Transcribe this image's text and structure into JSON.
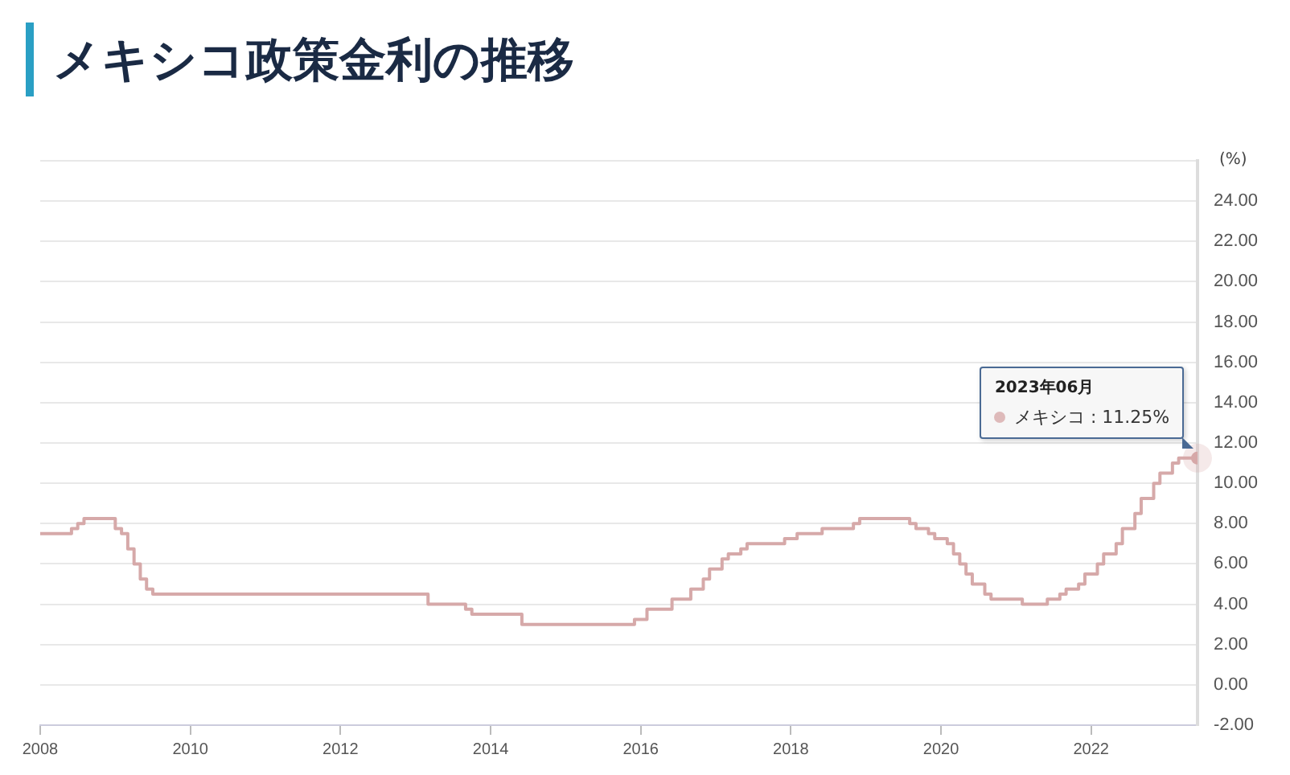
{
  "chart_data": {
    "type": "step",
    "title": "メキシコ政策金利の推移",
    "ylabel": "(%)",
    "x": [
      "2008-01",
      "2008-06",
      "2008-07",
      "2008-08",
      "2009-01",
      "2009-02",
      "2009-03",
      "2009-04",
      "2009-05",
      "2009-06",
      "2009-07",
      "2013-03",
      "2013-09",
      "2013-10",
      "2014-06",
      "2015-12",
      "2016-02",
      "2016-06",
      "2016-09",
      "2016-11",
      "2016-12",
      "2017-02",
      "2017-03",
      "2017-05",
      "2017-06",
      "2017-12",
      "2018-02",
      "2018-06",
      "2018-11",
      "2018-12",
      "2019-08",
      "2019-09",
      "2019-11",
      "2019-12",
      "2020-02",
      "2020-03",
      "2020-04",
      "2020-05",
      "2020-06",
      "2020-08",
      "2020-09",
      "2021-02",
      "2021-06",
      "2021-08",
      "2021-09",
      "2021-11",
      "2021-12",
      "2022-02",
      "2022-03",
      "2022-05",
      "2022-06",
      "2022-08",
      "2022-09",
      "2022-11",
      "2022-12",
      "2023-02",
      "2023-03",
      "2023-06"
    ],
    "series": [
      {
        "color": "#d6a9a9",
        "values": [
          7.5,
          7.75,
          8.0,
          8.25,
          7.75,
          7.5,
          6.75,
          6.0,
          5.25,
          4.75,
          4.5,
          4.0,
          3.75,
          3.5,
          3.0,
          3.25,
          3.75,
          4.25,
          4.75,
          5.25,
          5.75,
          6.25,
          6.5,
          6.75,
          7.0,
          7.25,
          7.5,
          7.75,
          8.0,
          8.25,
          8.0,
          7.75,
          7.5,
          7.25,
          7.0,
          6.5,
          6.0,
          5.5,
          5.0,
          4.5,
          4.25,
          4.0,
          4.25,
          4.5,
          4.75,
          5.0,
          5.5,
          6.0,
          6.5,
          7.0,
          7.75,
          8.5,
          9.25,
          10.0,
          10.5,
          11.0,
          11.25,
          11.25
        ]
      }
    ],
    "xlim": [
      "2008-01",
      "2023-06"
    ],
    "xticks": [
      "2008",
      "2010",
      "2012",
      "2014",
      "2016",
      "2018",
      "2020",
      "2022"
    ],
    "ylim": [
      -2,
      26
    ],
    "yticks": [
      {
        "value": -2,
        "label": "-2.00"
      },
      {
        "value": 0,
        "label": "0.00"
      },
      {
        "value": 2,
        "label": "2.00"
      },
      {
        "value": 4,
        "label": "4.00"
      },
      {
        "value": 6,
        "label": "6.00"
      },
      {
        "value": 8,
        "label": "8.00"
      },
      {
        "value": 10,
        "label": "10.00"
      },
      {
        "value": 12,
        "label": "12.00"
      },
      {
        "value": 14,
        "label": "14.00"
      },
      {
        "value": 16,
        "label": "16.00"
      },
      {
        "value": 18,
        "label": "18.00"
      },
      {
        "value": 20,
        "label": "20.00"
      },
      {
        "value": 22,
        "label": "22.00"
      },
      {
        "value": 24,
        "label": "24.00"
      },
      {
        "value": 26,
        "label": null
      }
    ],
    "annotations": [
      "2023年06月",
      "メキシコ : 11.25%"
    ],
    "grid": "y",
    "legend": false
  }
}
